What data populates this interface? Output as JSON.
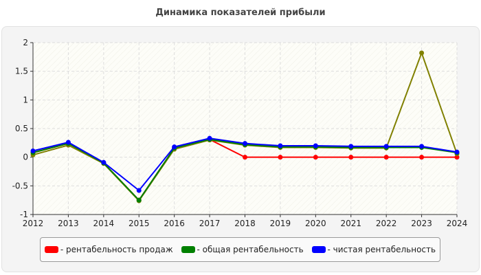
{
  "chart_data": {
    "type": "line",
    "title": "Динамика показателей прибыли",
    "x": [
      "2012",
      "2013",
      "2014",
      "2015",
      "2016",
      "2017",
      "2018",
      "2019",
      "2020",
      "2021",
      "2022",
      "2023",
      "2024"
    ],
    "ylim": [
      -1,
      2
    ],
    "yticks": [
      "2",
      "1.5",
      "1",
      "0.5",
      "0",
      "-0.5",
      "-1"
    ],
    "grid": true,
    "legend_position": "bottom",
    "series": [
      {
        "name": "- рентабельность продаж",
        "color": "#ff0000",
        "values": [
          0.08,
          0.24,
          -0.1,
          -0.75,
          0.16,
          0.31,
          0,
          0,
          0,
          0,
          0,
          0,
          0
        ]
      },
      {
        "name": "- общая рентабельность",
        "color": "#008000",
        "values": [
          0.08,
          0.24,
          -0.1,
          -0.75,
          0.16,
          0.31,
          0.22,
          0.18,
          0.18,
          0.17,
          0.17,
          0.17,
          0.08
        ]
      },
      {
        "name": "- чистая рентабельность",
        "color": "#0000ff",
        "values": [
          0.11,
          0.26,
          -0.09,
          -0.58,
          0.18,
          0.33,
          0.24,
          0.2,
          0.2,
          0.19,
          0.19,
          0.19,
          0.09
        ]
      },
      {
        "color": "#808000",
        "values": [
          0.04,
          0.21,
          -0.11,
          -0.76,
          0.14,
          0.3,
          0.21,
          0.17,
          0.17,
          0.16,
          0.16,
          1.82,
          0.06
        ]
      }
    ]
  }
}
